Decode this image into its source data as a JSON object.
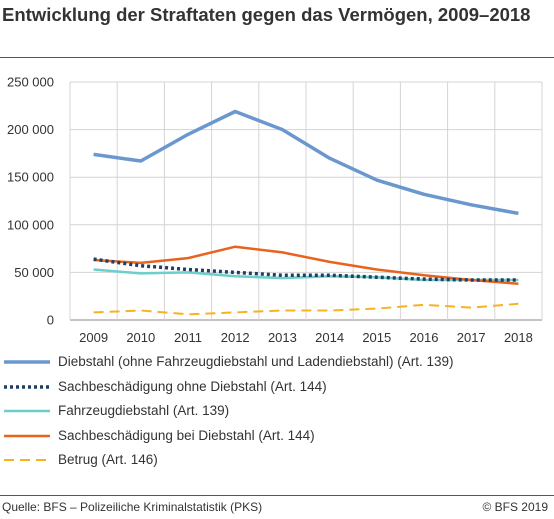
{
  "title": "Entwicklung der Straftaten gegen das Vermögen, 2009–2018",
  "source": "Quelle: BFS – Polizeiliche Kriminalstatistik (PKS)",
  "copyright": "© BFS 2019",
  "chart_data": {
    "type": "line",
    "title": "Entwicklung der Straftaten gegen das Vermögen, 2009–2018",
    "x": [
      "2009",
      "2010",
      "2011",
      "2012",
      "2013",
      "2014",
      "2015",
      "2016",
      "2017",
      "2018"
    ],
    "ylim": [
      0,
      250000
    ],
    "yticks": [
      0,
      50000,
      100000,
      150000,
      200000,
      250000
    ],
    "ytick_labels": [
      "0",
      "50 000",
      "100 000",
      "150 000",
      "200 000",
      "250 000"
    ],
    "grid": true,
    "legend_position": "bottom",
    "series": [
      {
        "name": "Diebstahl (ohne Fahrzeugdiebstahl und Ladendiebstahl) (Art. 139)",
        "color": "#6b97cf",
        "style": "solid",
        "values": [
          174000,
          167000,
          195000,
          219000,
          200000,
          170000,
          147000,
          132000,
          121000,
          112000
        ]
      },
      {
        "name": "Sachbeschädigung ohne Diebstahl (Art. 144)",
        "color": "#1f3f66",
        "style": "dotted",
        "values": [
          64000,
          57000,
          53000,
          50000,
          47000,
          47000,
          45000,
          43000,
          42000,
          42000
        ]
      },
      {
        "name": "Fahrzeugdiebstahl (Art. 139)",
        "color": "#6ccfcb",
        "style": "solid",
        "values": [
          53000,
          49000,
          50000,
          46000,
          44000,
          46000,
          45000,
          42000,
          42000,
          42000
        ]
      },
      {
        "name": "Sachbeschädigung bei Diebstahl (Art. 144)",
        "color": "#e8641e",
        "style": "solid",
        "values": [
          63000,
          60000,
          65000,
          77000,
          71000,
          61000,
          53000,
          47000,
          42000,
          38000
        ]
      },
      {
        "name": "Betrug (Art. 146)",
        "color": "#f5b321",
        "style": "dashed",
        "values": [
          8000,
          10000,
          6000,
          8000,
          10000,
          10000,
          12000,
          16000,
          13000,
          17000
        ]
      }
    ]
  }
}
